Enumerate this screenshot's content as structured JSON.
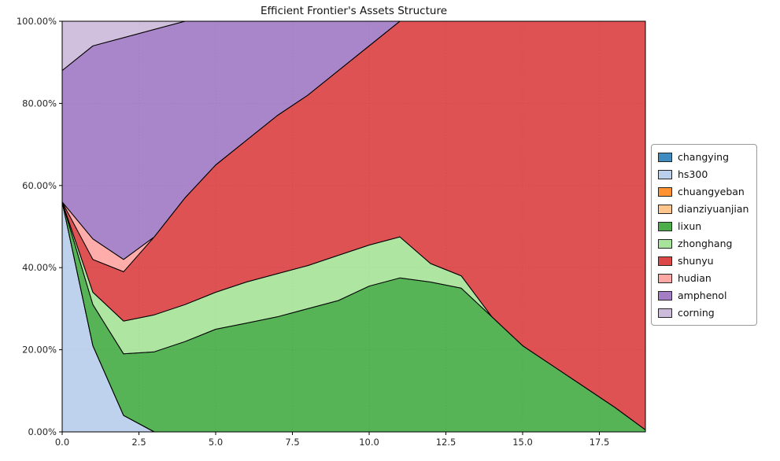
{
  "chart_data": {
    "type": "area",
    "stacked": true,
    "title": "Efficient Frontier's Assets Structure",
    "xlabel": "",
    "ylabel": "",
    "xlim": [
      0,
      19
    ],
    "ylim": [
      0,
      100
    ],
    "grid": "dotted",
    "legend_position": "center-right-outside",
    "x": [
      0,
      1,
      2,
      3,
      4,
      5,
      6,
      7,
      8,
      9,
      10,
      11,
      12,
      13,
      14,
      15,
      16,
      17,
      18,
      19
    ],
    "xticks": {
      "values": [
        0,
        2.5,
        5,
        7.5,
        10,
        12.5,
        15,
        17.5
      ],
      "labels": [
        "0.0",
        "2.5",
        "5.0",
        "7.5",
        "10.0",
        "12.5",
        "15.0",
        "17.5"
      ]
    },
    "yticks": {
      "values": [
        0,
        20,
        40,
        60,
        80,
        100
      ],
      "labels": [
        "0.00%",
        "20.00%",
        "40.00%",
        "60.00%",
        "80.00%",
        "100.00%"
      ]
    },
    "series": [
      {
        "name": "changying",
        "color": "#1f77b4",
        "values": [
          0,
          0,
          0,
          0,
          0,
          0,
          0,
          0,
          0,
          0,
          0,
          0,
          0,
          0,
          0,
          0,
          0,
          0,
          0,
          0
        ]
      },
      {
        "name": "hs300",
        "color": "#aec7e8",
        "values": [
          56,
          21,
          4,
          0,
          0,
          0,
          0,
          0,
          0,
          0,
          0,
          0,
          0,
          0,
          0,
          0,
          0,
          0,
          0,
          0
        ]
      },
      {
        "name": "chuangyeban",
        "color": "#ff7f0e",
        "values": [
          0,
          0,
          0,
          0,
          0,
          0,
          0,
          0,
          0,
          0,
          0,
          0,
          0,
          0,
          0,
          0,
          0,
          0,
          0,
          0
        ]
      },
      {
        "name": "dianziyuanjian",
        "color": "#ffbb78",
        "values": [
          0,
          0,
          0,
          0,
          0,
          0,
          0,
          0,
          0,
          0,
          0,
          0,
          0,
          0,
          0,
          0,
          0,
          0,
          0,
          0
        ]
      },
      {
        "name": "lixun",
        "color": "#2ca02c",
        "values": [
          0,
          10,
          15,
          19.5,
          22,
          25,
          26.5,
          28,
          30,
          32,
          35.5,
          37.5,
          36.5,
          35,
          28,
          21,
          16,
          11,
          6,
          0.5
        ]
      },
      {
        "name": "zhonghang",
        "color": "#98df8a",
        "values": [
          0,
          3,
          8,
          9,
          9,
          9,
          10,
          10.5,
          10.5,
          11,
          10,
          10,
          4.5,
          3,
          0,
          0,
          0,
          0,
          0,
          0
        ]
      },
      {
        "name": "shunyu",
        "color": "#d62728",
        "values": [
          0,
          8,
          12,
          19,
          26,
          31,
          34.5,
          38.5,
          41.5,
          45,
          48.5,
          52.5,
          59,
          62,
          72,
          79,
          84,
          89,
          94,
          99.5
        ]
      },
      {
        "name": "hudian",
        "color": "#ff9896",
        "values": [
          0,
          5,
          3,
          0,
          0,
          0,
          0,
          0,
          0,
          0,
          0,
          0,
          0,
          0,
          0,
          0,
          0,
          0,
          0,
          0
        ]
      },
      {
        "name": "amphenol",
        "color": "#9467bd",
        "values": [
          32,
          47,
          54,
          50.5,
          43,
          35,
          29,
          23,
          18,
          12,
          6,
          0,
          0,
          0,
          0,
          0,
          0,
          0,
          0,
          0
        ]
      },
      {
        "name": "corning",
        "color": "#c5b0d5",
        "values": [
          12,
          6,
          4,
          2,
          0,
          0,
          0,
          0,
          0,
          0,
          0,
          0,
          0,
          0,
          0,
          0,
          0,
          0,
          0,
          0
        ]
      }
    ]
  }
}
